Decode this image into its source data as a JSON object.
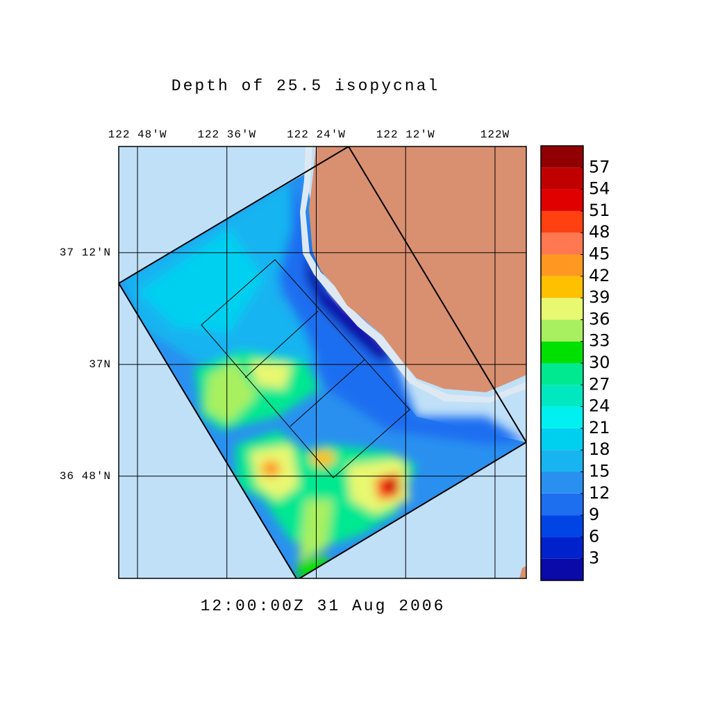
{
  "chart_data": {
    "type": "map",
    "title": "Depth of 25.5 isopycnal",
    "time_label": "12:00:00Z  31 Aug 2006",
    "xlim": [
      -122.842,
      -121.93
    ],
    "ylim": [
      36.617,
      37.39
    ],
    "xticks": [
      {
        "value": -122.8,
        "label": "122 48'W"
      },
      {
        "value": -122.6,
        "label": "122 36'W"
      },
      {
        "value": -122.4,
        "label": "122 24'W"
      },
      {
        "value": -122.2,
        "label": "122 12'W"
      },
      {
        "value": -122.0,
        "label": "122W"
      }
    ],
    "yticks": [
      {
        "value": 37.2,
        "label": "37 12'N"
      },
      {
        "value": 37.0,
        "label": "37N"
      },
      {
        "value": 36.8,
        "label": "36 48'N"
      }
    ],
    "grid": true,
    "colorbar": {
      "lim": [
        0,
        60
      ],
      "ticks": [
        3,
        6,
        9,
        12,
        15,
        18,
        21,
        24,
        27,
        30,
        33,
        36,
        39,
        42,
        45,
        48,
        51,
        54,
        57
      ],
      "colors": [
        "#0a0aa8",
        "#0022cc",
        "#0044e6",
        "#1e6ef0",
        "#2a90f0",
        "#18b4f0",
        "#00d0f0",
        "#00f0f0",
        "#00e8c0",
        "#00e890",
        "#00e000",
        "#a8f060",
        "#e8f870",
        "#ffc000",
        "#ff9820",
        "#ff7850",
        "#ff4010",
        "#e00000",
        "#c00000",
        "#900000"
      ]
    }
  }
}
